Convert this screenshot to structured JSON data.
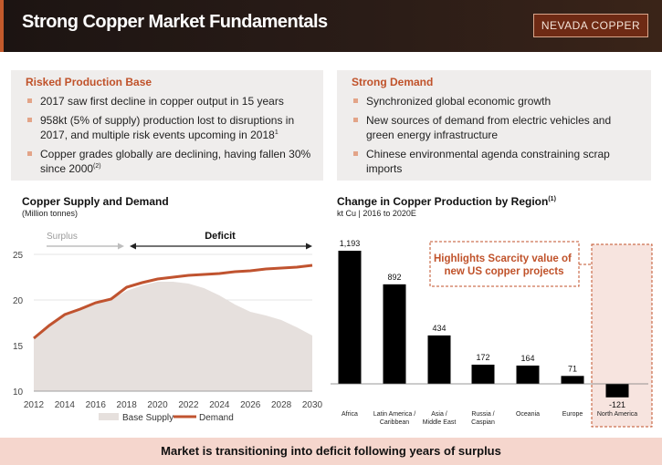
{
  "header": {
    "title": "Strong Copper Market Fundamentals",
    "logo": "NEVADA COPPER"
  },
  "left_panel": {
    "heading": "Risked Production Base",
    "b1": "2017 saw first decline in copper output in 15 years",
    "b2": "958kt (5% of supply) production lost to disruptions in 2017, and multiple risk events upcoming in 2018",
    "b2_sup": "1",
    "b3": "Copper grades globally are declining, having fallen 30% since 2000",
    "b3_sup": "(2)"
  },
  "right_panel": {
    "heading": "Strong Demand",
    "b1": "Synchronized global economic growth",
    "b2": "New sources of demand from electric vehicles and green energy infrastructure",
    "b3": "Chinese environmental agenda constraining scrap imports"
  },
  "supply_chart": {
    "title": "Copper Supply and Demand",
    "subtitle": "(Million tonnes)",
    "surplus_label": "Surplus",
    "deficit_label": "Deficit",
    "legend_supply": "Base Supply",
    "legend_demand": "Demand"
  },
  "production_chart": {
    "title": "Change in Copper Production by Region",
    "title_sup": "(1)",
    "subtitle": "kt Cu | 2016 to 2020E",
    "callout": "Highlights Scarcity value of new US copper projects"
  },
  "banner": "Market is transitioning into deficit following years of surplus",
  "colors": {
    "accent": "#c0522a",
    "demand": "#c0532f",
    "supply": "#e6e0dd",
    "bar": "#000000",
    "highlight": "#f7e4df"
  },
  "chart_data": [
    {
      "type": "area",
      "title": "Copper Supply and Demand",
      "subtitle": "(Million tonnes)",
      "x": [
        2012,
        2013,
        2014,
        2015,
        2016,
        2017,
        2018,
        2019,
        2020,
        2021,
        2022,
        2023,
        2024,
        2025,
        2026,
        2027,
        2028,
        2029,
        2030
      ],
      "x_ticks": [
        2012,
        2014,
        2016,
        2018,
        2020,
        2022,
        2024,
        2026,
        2028,
        2030
      ],
      "y_ticks": [
        10,
        15,
        20,
        25
      ],
      "ylim": [
        10,
        25.5
      ],
      "series": [
        {
          "name": "Base Supply",
          "type": "area",
          "values": [
            15.8,
            17.3,
            18.4,
            19.0,
            19.7,
            20.1,
            21.0,
            21.6,
            22.0,
            22.0,
            21.8,
            21.3,
            20.5,
            19.5,
            18.7,
            18.3,
            17.8,
            17.0,
            16.1
          ]
        },
        {
          "name": "Demand",
          "type": "line",
          "values": [
            15.8,
            17.2,
            18.4,
            19.0,
            19.7,
            20.1,
            21.4,
            21.9,
            22.3,
            22.5,
            22.7,
            22.8,
            22.9,
            23.1,
            23.2,
            23.4,
            23.5,
            23.6,
            23.8
          ]
        }
      ],
      "legend": "bottom"
    },
    {
      "type": "bar",
      "title": "Change in Copper Production by Region",
      "subtitle": "kt Cu | 2016 to 2020E",
      "categories": [
        "Africa",
        "Latin America / Caribbean",
        "Asia / Middle East",
        "Russia / Caspian",
        "Oceania",
        "Europe",
        "North America"
      ],
      "values": [
        1193,
        892,
        434,
        172,
        164,
        71,
        -121
      ],
      "value_labels": [
        "1,193",
        "892",
        "434",
        "172",
        "164",
        "71",
        "-121"
      ],
      "ylim": [
        -200,
        1300
      ]
    }
  ]
}
